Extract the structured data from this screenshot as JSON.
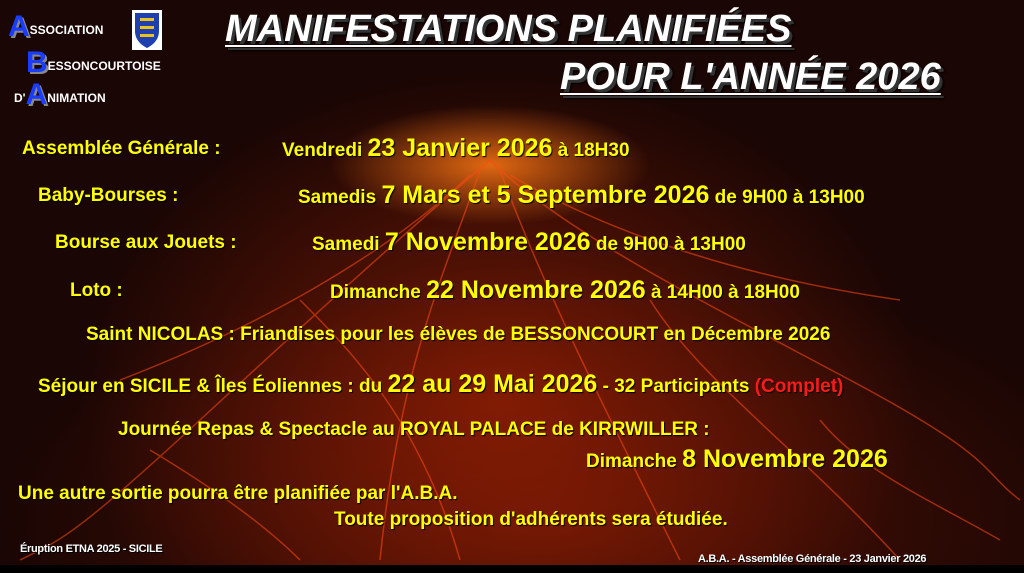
{
  "logo": {
    "line1_cap": "A",
    "line1_rest": "SSOCIATION",
    "line2_cap": "B",
    "line2_rest": "ESSONCOURTOISE",
    "line3_pre": "D'",
    "line3_cap": "A",
    "line3_rest": "NIMATION",
    "crest_icon": "coat-of-arms-icon"
  },
  "title": {
    "line1": "MANIFESTATIONS PLANIFIÉES",
    "line2": "POUR L'ANNÉE 2026"
  },
  "events": [
    {
      "label": "Assemblée Générale :",
      "pre": "Vendredi ",
      "date": "23 Janvier 2026",
      "post": " à 18H30"
    },
    {
      "label": "Baby-Bourses :",
      "pre": "Samedis ",
      "date": "7 Mars et 5 Septembre 2026",
      "post": "  de 9H00 à 13H00"
    },
    {
      "label": "Bourse aux Jouets :",
      "pre": "Samedi ",
      "date": "7 Novembre 2026",
      "post": " de 9H00 à 13H00"
    },
    {
      "label": "Loto :",
      "pre": "Dimanche ",
      "date": "22 Novembre 2026",
      "post": " à 14H00 à 18H00"
    },
    {
      "text": "Saint NICOLAS :  Friandises pour les élèves de BESSONCOURT en Décembre 2026"
    },
    {
      "pre": "Séjour en SICILE & Îles Éoliennes : du ",
      "date": "22 au 29 Mai 2026",
      "post": " - 32 Participants  ",
      "status": "(Complet)"
    },
    {
      "text": "Journée Repas & Spectacle au ROYAL PALACE de KIRRWILLER :",
      "pre": "Dimanche ",
      "date": "8 Novembre 2026"
    }
  ],
  "notes": {
    "line1": "Une autre sortie pourra être planifiée par l'A.B.A.",
    "line2": "Toute proposition d'adhérents sera étudiée."
  },
  "footer": {
    "left": "Éruption ETNA 2025 - SICILE",
    "right": "A.B.A. - Assemblée Générale - 23 Janvier 2026"
  },
  "colors": {
    "text": "#ffff00",
    "status": "#ff1a1a",
    "logo_caps": "#1a3cff",
    "title": "#ffffff"
  }
}
